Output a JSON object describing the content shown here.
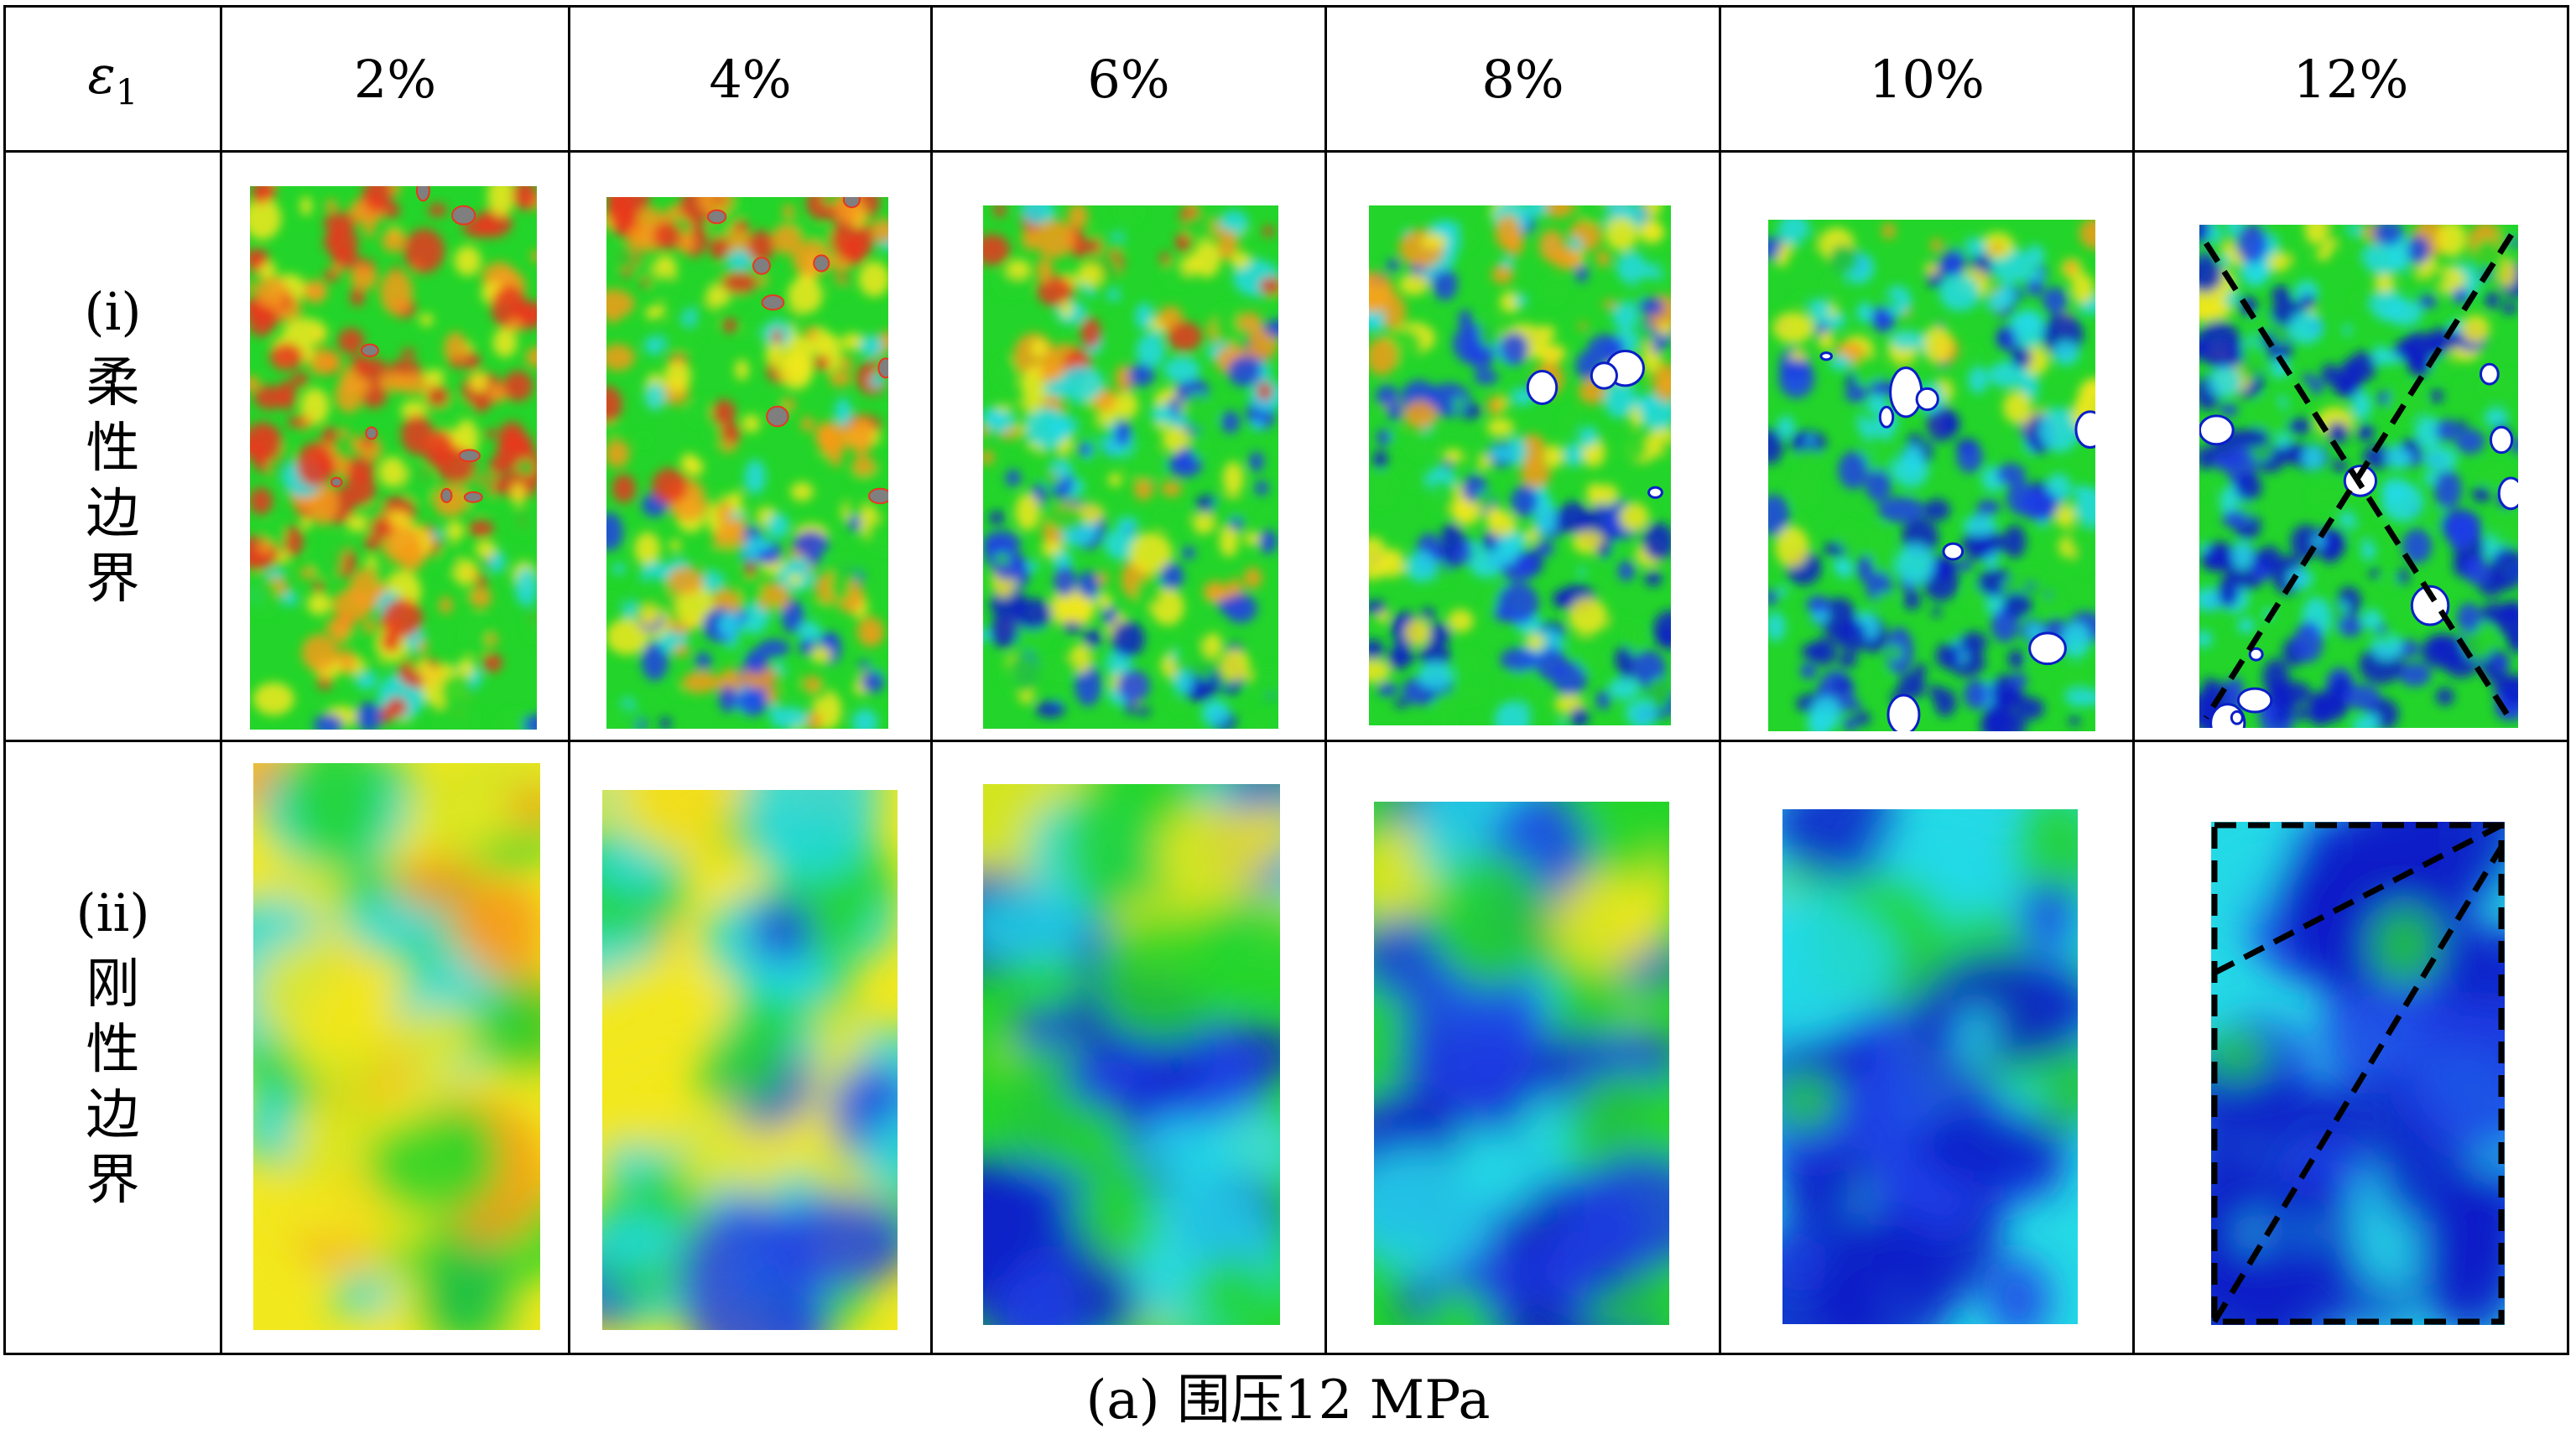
{
  "table": {
    "corner_label_symbol": "ε",
    "corner_label_sub": "1",
    "strain_headers": [
      "2%",
      "4%",
      "6%",
      "8%",
      "10%",
      "12%"
    ],
    "rows": [
      {
        "id": "i",
        "label": "(i)",
        "chars": [
          "柔",
          "性",
          "边",
          "界"
        ]
      },
      {
        "id": "ii",
        "label": "(ii)",
        "chars": [
          "刚",
          "性",
          "边",
          "界"
        ]
      }
    ]
  },
  "caption": "(a) 围压12 MPa",
  "colors": {
    "red": "#e8371e",
    "orange": "#f59b1a",
    "yellow": "#f2e81e",
    "green": "#23d52a",
    "cyan": "#25d9e6",
    "blue": "#1f3fe6",
    "navy": "#0a1ec8",
    "gray": "#7f7f7f",
    "white": "#ffffff"
  }
}
